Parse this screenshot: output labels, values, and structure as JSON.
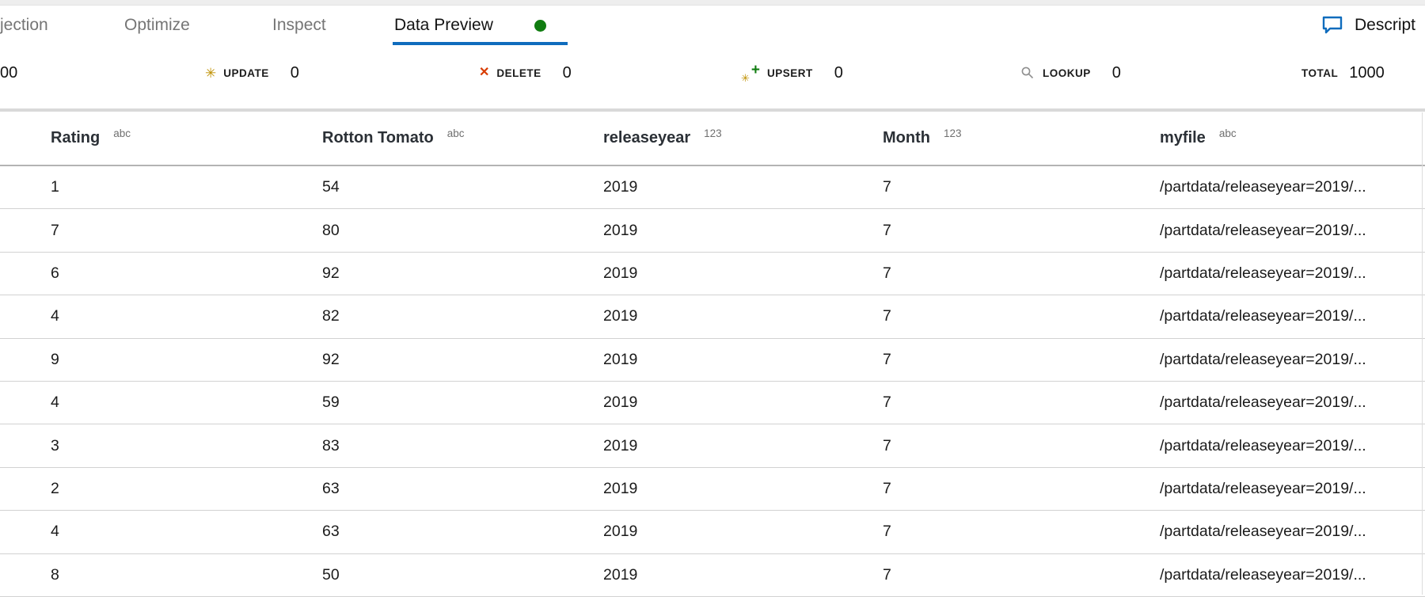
{
  "tabs_bar": {
    "tabs": [
      {
        "label": "jection",
        "active": false,
        "has_status_dot": false
      },
      {
        "label": "Optimize",
        "active": false,
        "has_status_dot": false
      },
      {
        "label": "Inspect",
        "active": false,
        "has_status_dot": false
      },
      {
        "label": "Data Preview",
        "active": true,
        "has_status_dot": true
      }
    ],
    "right_action": {
      "label": "Descript",
      "icon": "comment-icon"
    }
  },
  "stats_bar": {
    "insert": {
      "value": "00"
    },
    "update": {
      "label": "UPDATE",
      "value": "0",
      "icon": "asterisk-icon"
    },
    "delete": {
      "label": "DELETE",
      "value": "0",
      "icon": "x-icon"
    },
    "upsert": {
      "label": "UPSERT",
      "value": "0",
      "icon": "asterisk-plus-icon"
    },
    "lookup": {
      "label": "LOOKUP",
      "value": "0",
      "icon": "magnifier-icon"
    },
    "total": {
      "label": "TOTAL",
      "value": "1000"
    }
  },
  "table": {
    "columns": [
      {
        "name": "Rating",
        "type": "abc"
      },
      {
        "name": "Rotton Tomato",
        "type": "abc"
      },
      {
        "name": "releaseyear",
        "type": "123"
      },
      {
        "name": "Month",
        "type": "123"
      },
      {
        "name": "myfile",
        "type": "abc"
      }
    ],
    "rows": [
      [
        "1",
        "54",
        "2019",
        "7",
        "/partdata/releaseyear=2019/..."
      ],
      [
        "7",
        "80",
        "2019",
        "7",
        "/partdata/releaseyear=2019/..."
      ],
      [
        "6",
        "92",
        "2019",
        "7",
        "/partdata/releaseyear=2019/..."
      ],
      [
        "4",
        "82",
        "2019",
        "7",
        "/partdata/releaseyear=2019/..."
      ],
      [
        "9",
        "92",
        "2019",
        "7",
        "/partdata/releaseyear=2019/..."
      ],
      [
        "4",
        "59",
        "2019",
        "7",
        "/partdata/releaseyear=2019/..."
      ],
      [
        "3",
        "83",
        "2019",
        "7",
        "/partdata/releaseyear=2019/..."
      ],
      [
        "2",
        "63",
        "2019",
        "7",
        "/partdata/releaseyear=2019/..."
      ],
      [
        "4",
        "63",
        "2019",
        "7",
        "/partdata/releaseyear=2019/..."
      ],
      [
        "8",
        "50",
        "2019",
        "7",
        "/partdata/releaseyear=2019/..."
      ]
    ]
  },
  "colors": {
    "accent_blue": "#0f6cbd",
    "status_green": "#107c10",
    "update_gold": "#bf9000",
    "delete_red": "#d83b01",
    "lookup_gray": "#8f8f8f"
  }
}
